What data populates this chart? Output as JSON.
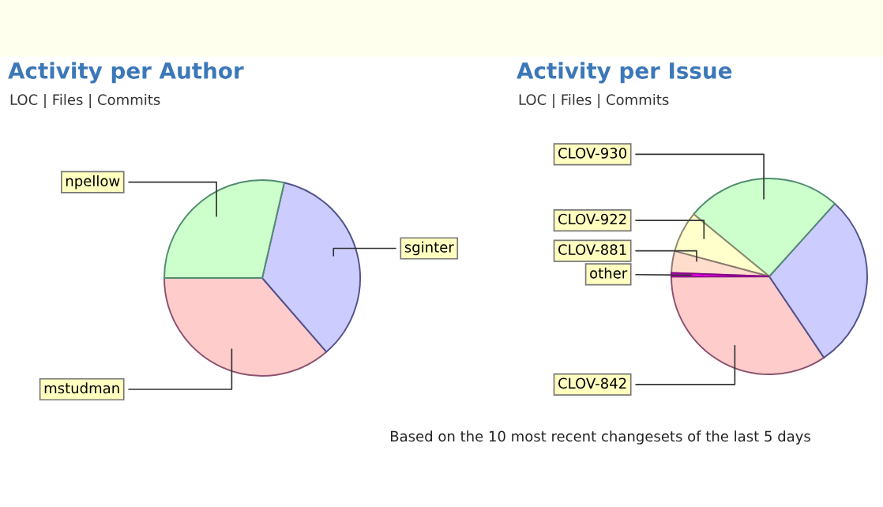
{
  "chart_data": [
    {
      "type": "pie",
      "title": "Activity per Author",
      "subtitle": "LOC | Files | Commits",
      "categories": [
        "sginter",
        "mstudman",
        "npellow"
      ],
      "values": [
        35,
        36.4,
        28.6
      ],
      "colors": [
        "#ccccff",
        "#ffcccc",
        "#ccffcc"
      ]
    },
    {
      "type": "pie",
      "title": "Activity per Issue",
      "subtitle": "LOC | Files | Commits",
      "categories": [
        null,
        "CLOV-842",
        "other",
        "CLOV-881",
        "CLOV-922",
        "CLOV-930"
      ],
      "values": [
        28.9,
        34.4,
        0.6,
        3.6,
        6.8,
        25.7
      ],
      "colors": [
        "#ccccff",
        "#ffcccc",
        "#ff00ff",
        "#ffddcc",
        "#ffffcc",
        "#ccffcc"
      ],
      "annotations": [
        "Based on the 10 most recent changesets of the last 5 days"
      ]
    }
  ]
}
